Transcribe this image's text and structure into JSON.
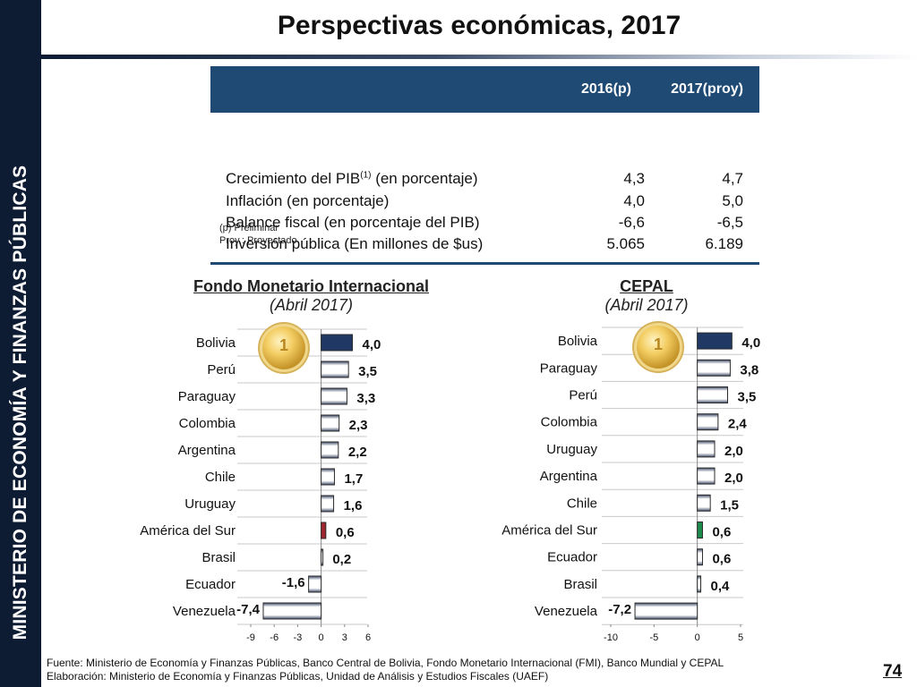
{
  "sidebar": {
    "text": "MINISTERIO DE ECONOMÍA Y FINANZAS PÚBLICAS"
  },
  "title": "Perspectivas económicas, 2017",
  "table": {
    "headers": [
      "2016(p)",
      "2017(proy)"
    ],
    "rows": [
      {
        "label": "Crecimiento del PIB",
        "sup": "(1)",
        "label_suffix": " (en porcentaje)",
        "v2016": "4,3",
        "v2017": "4,7"
      },
      {
        "label": "Inflación (en porcentaje)",
        "v2016": "4,0",
        "v2017": "5,0"
      },
      {
        "label": "Balance fiscal (en porcentaje del PIB)",
        "v2016": "-6,6",
        "v2017": "-6,5"
      },
      {
        "label": "Inversión pública (En millones de $us)",
        "v2016": "5.065",
        "v2017": "6.189"
      }
    ],
    "notes": [
      "(p) Preliminar",
      "Proy.: Proyectado"
    ]
  },
  "colors": {
    "highlight": "#1f3864",
    "south_america_imf": "#a0262e",
    "south_america_cepal": "#1e8b4c",
    "bar_default": "#ffffff"
  },
  "chart_data": [
    {
      "type": "bar",
      "orientation": "horizontal",
      "title": "Fondo Monetario Internacional",
      "subtitle": "(Abril 2017)",
      "categories": [
        "Bolivia",
        "Perú",
        "Paraguay",
        "Colombia",
        "Argentina",
        "Chile",
        "Uruguay",
        "América del Sur",
        "Brasil",
        "Ecuador",
        "Venezuela"
      ],
      "values": [
        4.0,
        3.5,
        3.3,
        2.3,
        2.2,
        1.7,
        1.6,
        0.6,
        0.2,
        -1.6,
        -7.4
      ],
      "value_labels": [
        "4,0",
        "3,5",
        "3,3",
        "2,3",
        "2,2",
        "1,7",
        "1,6",
        "0,6",
        "0,2",
        "-1,6",
        "-7,4"
      ],
      "xlim": [
        -9,
        6
      ],
      "xticks": [
        "-9",
        "-6",
        "-3",
        "0",
        "3",
        "6"
      ],
      "highlight": {
        "Bolivia": "highlight",
        "América del Sur": "south_america_imf"
      }
    },
    {
      "type": "bar",
      "orientation": "horizontal",
      "title": "CEPAL",
      "subtitle": "(Abril 2017)",
      "categories": [
        "Bolivia",
        "Paraguay",
        "Perú",
        "Colombia",
        "Uruguay",
        "Argentina",
        "Chile",
        "América del Sur",
        "Ecuador",
        "Brasil",
        "Venezuela"
      ],
      "values": [
        4.0,
        3.8,
        3.5,
        2.4,
        2.0,
        2.0,
        1.5,
        0.6,
        0.6,
        0.4,
        -7.2
      ],
      "value_labels": [
        "4,0",
        "3,8",
        "3,5",
        "2,4",
        "2,0",
        "2,0",
        "1,5",
        "0,6",
        "0,6",
        "0,4",
        "-7,2"
      ],
      "xlim": [
        -10,
        5
      ],
      "xticks": [
        "-10",
        "-5",
        "0",
        "5"
      ],
      "highlight": {
        "Bolivia": "highlight",
        "América del Sur": "south_america_cepal"
      }
    }
  ],
  "footer": {
    "source": "Fuente: Ministerio de Economía y Finanzas Públicas, Banco Central de Bolivia, Fondo Monetario Internacional (FMI), Banco Mundial y CEPAL",
    "elaboration": "Elaboración: Ministerio de Economía y Finanzas Públicas, Unidad de Análisis y Estudios Fiscales (UAEF)"
  },
  "page_number": "74"
}
